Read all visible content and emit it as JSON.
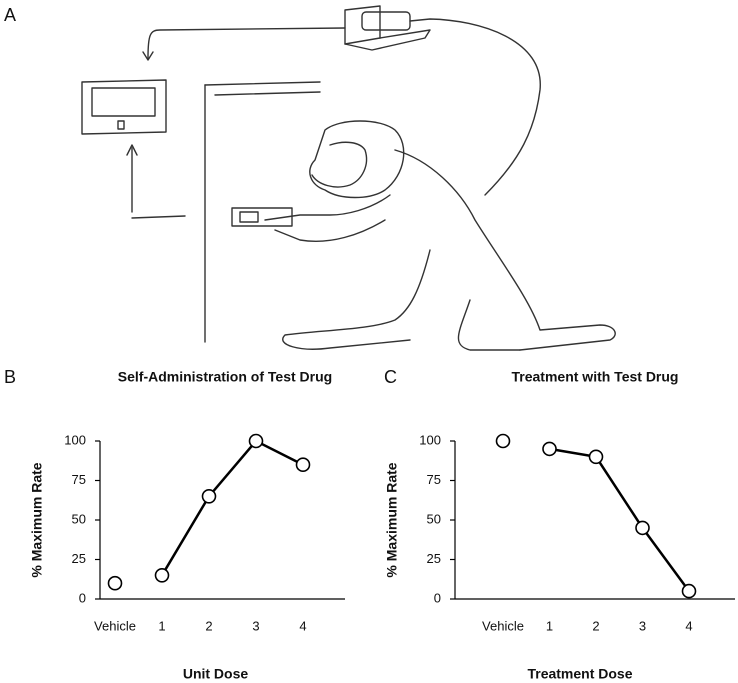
{
  "illustration": {
    "panel": "A"
  },
  "chart_data": [
    {
      "type": "line",
      "panel": "B",
      "title": "Self-Administration of Test Drug",
      "x_label": "Unit Dose",
      "y_label": "% Maximum Rate",
      "categories": [
        "Vehicle",
        "1",
        "2",
        "3",
        "4"
      ],
      "values": [
        10,
        15,
        65,
        100,
        85
      ],
      "connect_from_index": 1,
      "color": "#000000",
      "ylim": [
        0,
        100
      ],
      "yticks": [
        0,
        25,
        50,
        75,
        100
      ]
    },
    {
      "type": "line",
      "panel": "C",
      "title": "Treatment with Test Drug",
      "x_label": "Treatment Dose",
      "y_label": "% Maximum Rate",
      "categories": [
        "Vehicle",
        "1",
        "2",
        "3",
        "4"
      ],
      "values": [
        100,
        95,
        90,
        45,
        5
      ],
      "connect_from_index": 1,
      "color": "#000000",
      "ylim": [
        0,
        100
      ],
      "yticks": [
        0,
        25,
        50,
        75,
        100
      ]
    }
  ]
}
